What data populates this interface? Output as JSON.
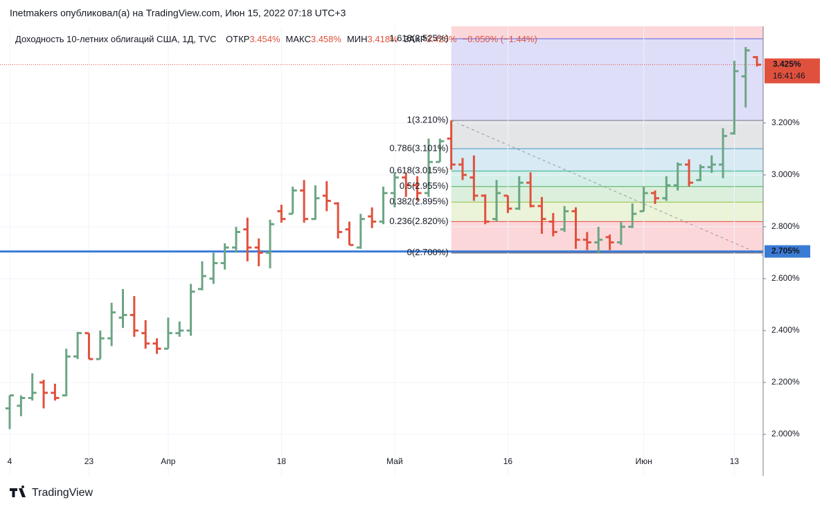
{
  "chart_data": {
    "type": "ohlc",
    "header": "Inetmakers опубликовал(а) на TradingView.com, Июн 15, 2022 07:18 UTC+3",
    "title": "Доходность 10-летних облигаций США, 1Д, TVC",
    "legend": [
      {
        "label": "ОТКР",
        "value": "3.454%"
      },
      {
        "label": "МАКС",
        "value": "3.458%"
      },
      {
        "label": "МИН",
        "value": "3.418%"
      },
      {
        "label": "ЗАКР",
        "value": "3.425%"
      }
    ],
    "change": "−0.050% (−1.44%)",
    "brand": "TradingView",
    "categories": [
      "4",
      null,
      null,
      null,
      null,
      null,
      null,
      "23",
      null,
      null,
      null,
      null,
      null,
      null,
      "Апр",
      null,
      null,
      null,
      null,
      null,
      null,
      null,
      null,
      null,
      "18",
      null,
      null,
      null,
      null,
      null,
      null,
      null,
      null,
      null,
      "Май",
      null,
      null,
      null,
      null,
      null,
      null,
      null,
      null,
      null,
      "16",
      null,
      null,
      null,
      null,
      null,
      null,
      null,
      null,
      null,
      null,
      null,
      "Июн",
      null,
      null,
      null,
      null,
      null,
      null,
      null,
      "13",
      null,
      null
    ],
    "open": [
      2.1,
      2.11,
      2.14,
      2.2,
      2.16,
      2.15,
      2.3,
      2.39,
      2.29,
      2.37,
      2.45,
      2.46,
      2.39,
      2.35,
      2.33,
      2.39,
      2.4,
      2.56,
      2.6,
      2.66,
      2.72,
      2.79,
      2.72,
      2.7,
      2.86,
      2.85,
      2.94,
      2.83,
      2.92,
      2.89,
      2.79,
      2.72,
      2.84,
      2.82,
      2.93,
      2.99,
      2.96,
      2.93,
      3.05,
      3.14,
      3.04,
      2.99,
      2.92,
      2.83,
      2.92,
      2.87,
      2.97,
      2.88,
      2.82,
      2.79,
      2.86,
      2.75,
      2.74,
      2.76,
      2.74,
      2.8,
      2.86,
      2.93,
      2.91,
      2.96,
      3.04,
      2.98,
      3.03,
      3.04,
      3.16,
      3.38,
      3.454
    ],
    "high": [
      2.15,
      2.15,
      2.235,
      2.21,
      2.195,
      2.33,
      2.395,
      2.39,
      2.4,
      2.507,
      2.56,
      2.533,
      2.44,
      2.37,
      2.45,
      2.435,
      2.58,
      2.667,
      2.7,
      2.736,
      2.8,
      2.835,
      2.755,
      2.827,
      2.885,
      2.955,
      2.98,
      2.96,
      2.976,
      2.895,
      2.82,
      2.85,
      2.875,
      2.955,
      3.01,
      3.008,
      2.995,
      3.14,
      3.14,
      3.21,
      3.065,
      3.075,
      2.925,
      2.98,
      2.92,
      2.995,
      3.01,
      2.915,
      2.853,
      2.88,
      2.875,
      2.78,
      2.8,
      2.77,
      2.82,
      2.89,
      2.955,
      2.94,
      2.995,
      3.048,
      3.06,
      3.04,
      3.075,
      3.18,
      3.44,
      3.493,
      3.458
    ],
    "low": [
      2.02,
      2.07,
      2.13,
      2.1,
      2.13,
      2.147,
      2.29,
      2.29,
      2.29,
      2.34,
      2.41,
      2.376,
      2.33,
      2.31,
      2.33,
      2.376,
      2.38,
      2.555,
      2.58,
      2.635,
      2.7,
      2.667,
      2.648,
      2.64,
      2.816,
      2.85,
      2.816,
      2.827,
      2.86,
      2.755,
      2.73,
      2.715,
      2.795,
      2.81,
      2.875,
      2.915,
      2.9,
      2.915,
      3.05,
      3.02,
      2.98,
      2.9,
      2.81,
      2.82,
      2.853,
      2.865,
      2.875,
      2.773,
      2.763,
      2.78,
      2.715,
      2.71,
      2.7,
      2.71,
      2.73,
      2.795,
      2.86,
      2.888,
      2.9,
      2.94,
      2.955,
      2.976,
      3.008,
      2.987,
      3.155,
      3.26,
      3.418
    ],
    "close": [
      2.15,
      2.14,
      2.16,
      2.16,
      2.14,
      2.3,
      2.39,
      2.29,
      2.37,
      2.47,
      2.46,
      2.4,
      2.35,
      2.33,
      2.39,
      2.4,
      2.55,
      2.61,
      2.66,
      2.72,
      2.78,
      2.72,
      2.7,
      2.81,
      2.83,
      2.94,
      2.83,
      2.91,
      2.9,
      2.78,
      2.73,
      2.83,
      2.82,
      2.93,
      2.99,
      2.96,
      2.93,
      3.05,
      3.13,
      3.04,
      3.0,
      2.92,
      2.82,
      2.93,
      2.87,
      2.97,
      2.88,
      2.83,
      2.78,
      2.86,
      2.75,
      2.74,
      2.75,
      2.74,
      2.8,
      2.85,
      2.93,
      2.91,
      2.96,
      3.04,
      2.97,
      3.03,
      3.04,
      3.15,
      3.4,
      3.48,
      3.425
    ],
    "up_color": "#6ba583",
    "down_color": "#e0513d",
    "ylim": [
      1.928,
      3.573
    ],
    "yticks": [
      {
        "value": 2.0,
        "label": "2.000%"
      },
      {
        "value": 2.2,
        "label": "2.200%"
      },
      {
        "value": 2.4,
        "label": "2.400%"
      },
      {
        "value": 2.6,
        "label": "2.600%"
      },
      {
        "value": 2.8,
        "label": "2.800%"
      },
      {
        "value": 3.0,
        "label": "3.000%"
      },
      {
        "value": 3.2,
        "label": "3.200%"
      }
    ],
    "grid": true,
    "fib_start": 39,
    "fib_levels": [
      {
        "label": "0(2.700%)",
        "value": 2.7,
        "color": "#787b86"
      },
      {
        "label": "0.236(2.820%)",
        "value": 2.82,
        "color": "#f23645"
      },
      {
        "label": "0.382(2.895%)",
        "value": 2.895,
        "color": "#9ac23c"
      },
      {
        "label": "0.5(2.955%)",
        "value": 2.955,
        "color": "#4caf50"
      },
      {
        "label": "0.618(3.015%)",
        "value": 3.015,
        "color": "#26b08a"
      },
      {
        "label": "0.786(3.101%)",
        "value": 3.101,
        "color": "#3d98c8"
      },
      {
        "label": "1(3.210%)",
        "value": 3.21,
        "color": "#787b86"
      },
      {
        "label": "1.618(3.525%)",
        "value": 3.525,
        "color": "#5c5ce0"
      }
    ],
    "hline": {
      "value": 2.705,
      "label": "2.705%",
      "color": "#3a7bd5"
    },
    "last_price": {
      "value": 3.425,
      "label": "3.425%",
      "countdown": "16:41:46",
      "color": "#e0513d"
    }
  }
}
